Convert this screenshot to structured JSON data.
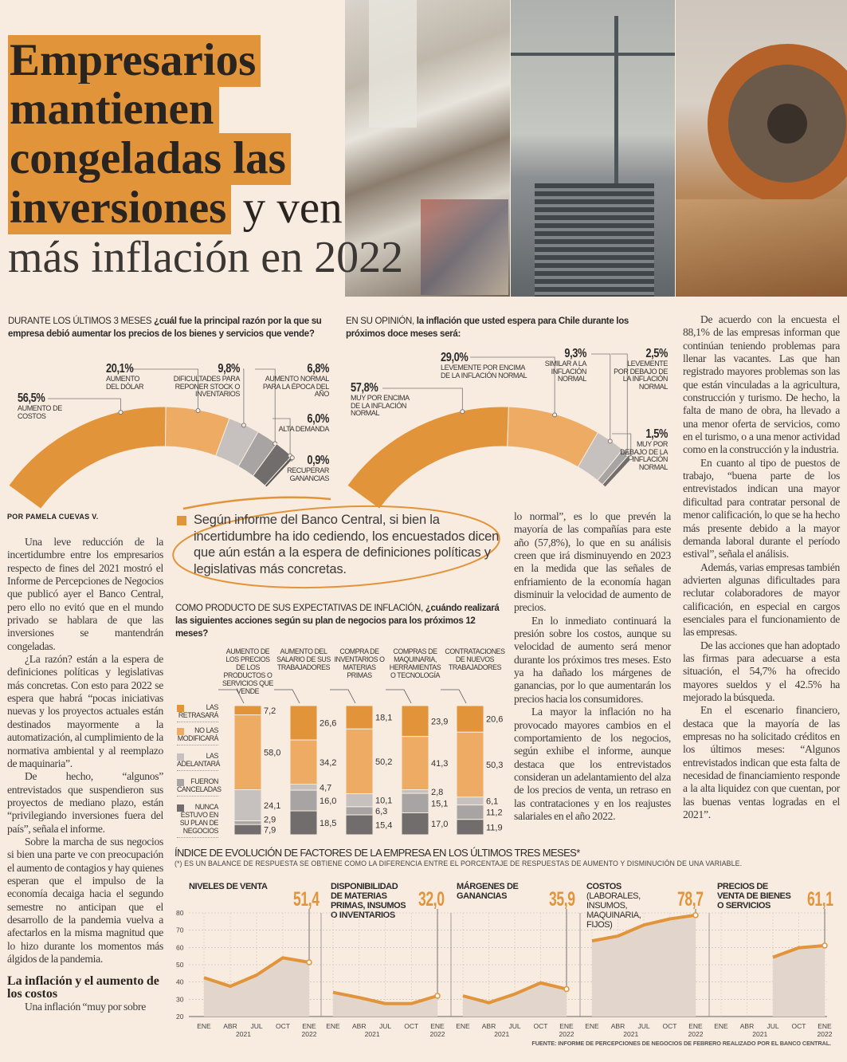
{
  "headline": {
    "line1": "Empresarios",
    "line2": "mantienen",
    "line3": "congeladas las",
    "line4_highlight": "inversiones",
    "line4_rest": " y ven",
    "line5": "más inflación en 2022"
  },
  "colors": {
    "accent": "#e1943a",
    "accent_light": "#eeab63",
    "gray_light": "#c6c1bf",
    "gray_mid": "#a8a4a3",
    "gray_dark": "#716d6c",
    "background": "#f8ebdf"
  },
  "photos": [
    "mall-shoppers-photo",
    "construction-crane-photo",
    "mining-excavator-wheel-photo"
  ],
  "chart1": {
    "title_caps": "DURANTE LOS ÚLTIMOS 3 MESES",
    "title_rest": " ¿cuál fue la principal razón por la que su empresa debió aumentar los precios de los bienes y servicios que vende?",
    "segments": [
      {
        "value": 56.5,
        "pct": "56,5%",
        "label": "AUMENTO DE COSTOS"
      },
      {
        "value": 20.1,
        "pct": "20,1%",
        "label": "AUMENTO DEL DÓLAR"
      },
      {
        "value": 9.8,
        "pct": "9,8%",
        "label": "DIFICULTADES PARA REPONER STOCK O INVENTARIOS"
      },
      {
        "value": 6.8,
        "pct": "6,8%",
        "label": "AUMENTO NORMAL PARA LA ÉPOCA DEL AÑO"
      },
      {
        "value": 6.0,
        "pct": "6,0%",
        "label": "ALTA DEMANDA"
      },
      {
        "value": 0.9,
        "pct": "0,9%",
        "label": "RECUPERAR GANANCIAS"
      }
    ]
  },
  "chart2": {
    "title_caps": "EN SU OPINIÓN,",
    "title_rest": " la inflación que usted espera para Chile durante los próximos doce meses será:",
    "segments": [
      {
        "value": 57.8,
        "pct": "57,8%",
        "label": "MUY POR ENCIMA DE LA INFLACIÓN NORMAL"
      },
      {
        "value": 29.0,
        "pct": "29,0%",
        "label": "LEVEMENTE POR ENCIMA DE LA INFLACIÓN NORMAL"
      },
      {
        "value": 9.3,
        "pct": "9,3%",
        "label": "SIMILAR A LA INFLACIÓN NORMAL"
      },
      {
        "value": 2.5,
        "pct": "2,5%",
        "label": "LEVEMENTE POR DEBAJO DE LA INFLACIÓN NORMAL"
      },
      {
        "value": 1.5,
        "pct": "1,5%",
        "label": "MUY POR DEBAJO DE LA INFLACIÓN NORMAL"
      }
    ]
  },
  "article": {
    "byline": "POR PAMELA CUEVAS V.",
    "col1": [
      "Una leve reducción de la incertidumbre entre los empresarios respecto de fines del 2021 mostró el Informe de Percepciones de Negocios que publicó ayer el Banco Central, pero ello no evitó que en el mundo privado se hablara de que las inversiones se mantendrán congeladas.",
      "¿La razón? están a la espera de definiciones políticas y legislativas más concretas. Con esto para 2022 se espera que habrá “pocas iniciativas nuevas y los proyectos actuales están destinados mayormente a la automatización, al cumplimiento de la normativa ambiental y al reemplazo de maquinaria”.",
      "De hecho, “algunos” entrevistados que suspendieron sus proyectos de mediano plazo, están “privilegiando inversiones fuera del país”, señala el informe.",
      "Sobre la marcha de sus negocios si bien una parte ve con preocupación el aumento de contagios y hay quienes esperan que el impulso de la economía decaiga hacia el segundo semestre no anticipan que el desarrollo de la pandemia vuelva a afectarlos en la misma magnitud que lo hizo durante los momentos más álgidos de la pandemia."
    ],
    "subhead": "La inflación y el aumento de los costos",
    "col1_tail": "Una inflación “muy por sobre",
    "col2": [
      "lo normal”, es lo que prevén la mayoría de las compañías para este año (57,8%), lo que en su análisis creen que irá disminuyendo en 2023 en la medida que las señales de enfriamiento de la economía hagan disminuir la velocidad de aumento de precios.",
      "En lo inmediato continuará la presión sobre los costos, aunque su velocidad de aumento será menor durante los próximos tres meses. Esto ya ha dañado los márgenes de ganancias, por lo que aumentarán los precios hacia los consumidores.",
      "La mayor la inflación no ha provocado mayores cambios en el comportamiento de los negocios, según exhibe el informe, aunque destaca que los entrevistados consideran un adelantamiento del alza de los precios de venta, un retraso en las contrataciones y en los reajustes salariales en el año 2022."
    ],
    "col3": [
      "De acuerdo con la encuesta el 88,1% de las empresas informan que continúan teniendo problemas para llenar las vacantes. Las que han registrado mayores problemas son las que están vinculadas a la agricultura, construcción y turismo. De hecho, la falta de mano de obra, ha llevado a una menor oferta de servicios, como en el turismo, o a una menor actividad como en la construcción y la industria.",
      "En cuanto al tipo de puestos de trabajo, “buena parte de los entrevistados indican una mayor dificultad para contratar personal de menor calificación, lo que se ha hecho más presente debido a la mayor demanda laboral durante el período estival”, señala el análisis.",
      "Además, varias empresas también advierten algunas dificultades para reclutar colaboradores de mayor calificación, en especial en cargos esenciales para el funcionamiento de las empresas.",
      "De las acciones que han adoptado las firmas para adecuarse a esta situación, el 54,7% ha ofrecido mayores sueldos y el 42.5% ha mejorado la búsqueda.",
      "En el escenario financiero, destaca que la mayoría de las empresas no ha solicitado créditos en los últimos meses: “Algunos entrevistados indican que esta falta de necesidad de financiamiento responde a la alta liquidez con que cuentan, por las buenas ventas logradas en el 2021”."
    ]
  },
  "pull_quote": "Según informe del Banco Central, si bien la incertidumbre ha ido cediendo, los encuestados dicen que aún están a la espera de definiciones políticas y legislativas más concretas.",
  "chart_data": [
    {
      "type": "bar",
      "stacked": true,
      "title_caps": "COMO PRODUCTO DE SUS EXPECTATIVAS DE INFLACIÓN,",
      "title_rest": " ¿cuándo realizará las siguientes acciones según su plan de negocios para los próximos 12 meses?",
      "categories": [
        "AUMENTO DE LOS PRECIOS DE LOS PRODUCTOS O SERVICIOS QUE VENDE",
        "AUMENTO DEL SALARIO DE SUS TRABAJADORES",
        "COMPRA DE INVENTARIOS O MATERIAS PRIMAS",
        "COMPRAS DE MAQUINARIA, HERRAMIENTAS O TECNOLOGÍA",
        "CONTRATACIONES DE NUEVOS TRABAJADORES"
      ],
      "series": [
        {
          "name": "LAS RETRASARÁ",
          "color": "#e1943a",
          "values": [
            7.2,
            26.6,
            18.1,
            23.9,
            20.6
          ],
          "labels": [
            "7,2",
            "26,6",
            "18,1",
            "23,9",
            "20,6"
          ]
        },
        {
          "name": "NO LAS MODIFICARÁ",
          "color": "#eeab63",
          "values": [
            58.0,
            34.2,
            50.2,
            41.3,
            50.3
          ],
          "labels": [
            "58,0",
            "34,2",
            "50,2",
            "41,3",
            "50,3"
          ]
        },
        {
          "name": "LAS ADELANTARÁ",
          "color": "#c6c1bf",
          "values": [
            24.1,
            4.7,
            10.1,
            2.8,
            6.1
          ],
          "labels": [
            "24,1",
            "4,7",
            "10,1",
            "2,8",
            "6,1"
          ]
        },
        {
          "name": "FUERON CANCELADAS",
          "color": "#a8a4a3",
          "values": [
            2.9,
            16.0,
            6.3,
            15.1,
            11.2
          ],
          "labels": [
            "2,9",
            "16,0",
            "6,3",
            "15,1",
            "11,2"
          ]
        },
        {
          "name": "NUNCA ESTUVO EN SU PLAN DE NEGOCIOS",
          "color": "#716d6c",
          "values": [
            7.9,
            18.5,
            15.4,
            17.0,
            11.9
          ],
          "labels": [
            "7,9",
            "18,5",
            "15,4",
            "17,0",
            "11,9"
          ]
        }
      ]
    },
    {
      "type": "area",
      "title": "ÍNDICE DE EVOLUCIÓN DE FACTORES DE LA EMPRESA EN LOS ÚLTIMOS TRES MESES*",
      "note": "(*) ES UN BALANCE DE RESPUESTA SE OBTIENE COMO LA DIFERENCIA ENTRE EL PORCENTAJE DE RESPUESTAS DE AUMENTO Y DISMINUCIÓN DE UNA VARIABLE.",
      "source": "FUENTE: INFORME DE PERCEPCIONES DE NEGOCIOS DE FEBRERO REALIZADO POR EL BANCO CENTRAL.",
      "ylim": [
        20,
        80
      ],
      "yticks": [
        "80",
        "70",
        "60",
        "50",
        "40",
        "30",
        "20"
      ],
      "x": [
        "ENE",
        "ABR",
        "JUL",
        "OCT",
        "ENE"
      ],
      "year_labels": [
        "2021",
        "2022"
      ],
      "grid": true,
      "panels": [
        {
          "title": "NIVELES DE VENTA",
          "subtitle": "",
          "last_label": "51,4",
          "values": [
            42.5,
            37.5,
            44,
            54,
            51.4
          ]
        },
        {
          "title": "DISPONIBILIDAD DE MATERIAS PRIMAS, INSUMOS O INVENTARIOS",
          "subtitle": "",
          "last_label": "32,0",
          "values": [
            34,
            31,
            27.5,
            27.5,
            32.0
          ]
        },
        {
          "title": "MÁRGENES DE GANANCIAS",
          "subtitle": "",
          "last_label": "35,9",
          "values": [
            32,
            28,
            33,
            39.5,
            35.9
          ]
        },
        {
          "title": "COSTOS",
          "subtitle": "(LABORALES, INSUMOS, MAQUINARIA, FIJOS)",
          "last_label": "78,7",
          "values": [
            63.8,
            66.6,
            73,
            76.5,
            78.7
          ]
        },
        {
          "title": "PRECIOS DE VENTA DE BIENES O SERVICIOS",
          "subtitle": "",
          "last_label": "61,1",
          "values": [
            null,
            null,
            54.3,
            59.8,
            61.1
          ]
        }
      ]
    }
  ]
}
